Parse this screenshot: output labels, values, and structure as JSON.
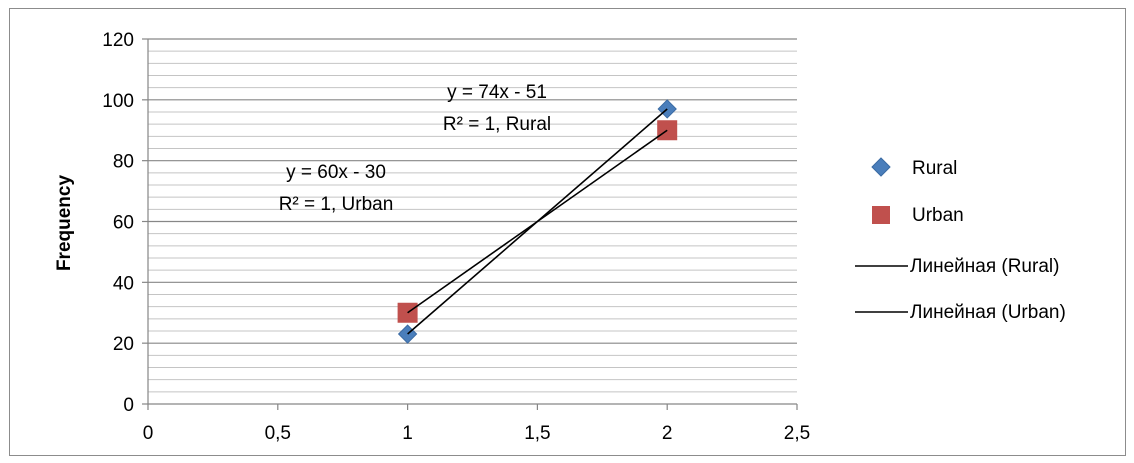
{
  "chart_data": {
    "type": "scatter",
    "title": "",
    "xlabel": "",
    "ylabel": "Frequency",
    "xlim": [
      0,
      2.5
    ],
    "ylim": [
      0,
      120
    ],
    "x_ticks": [
      0,
      0.5,
      1,
      1.5,
      2,
      2.5
    ],
    "x_tick_labels": [
      "0",
      "0,5",
      "1",
      "1,5",
      "2",
      "2,5"
    ],
    "y_ticks": [
      0,
      20,
      40,
      60,
      80,
      100,
      120
    ],
    "y_tick_labels": [
      "0",
      "20",
      "40",
      "60",
      "80",
      "100",
      "120"
    ],
    "grid": {
      "major_y": 20,
      "minor_y": 4,
      "vertical": false
    },
    "legend_position": "right",
    "series": [
      {
        "name": "Rural",
        "marker": "diamond",
        "color": "#4a7ebb",
        "points": [
          {
            "x": 1,
            "y": 23
          },
          {
            "x": 2,
            "y": 97
          }
        ]
      },
      {
        "name": "Urban",
        "marker": "square",
        "color": "#c0504d",
        "points": [
          {
            "x": 1,
            "y": 30
          },
          {
            "x": 2,
            "y": 90
          }
        ]
      }
    ],
    "trendlines": [
      {
        "name": "Линейная (Rural)",
        "color": "#000000",
        "slope": 74,
        "intercept": -51,
        "x_range": [
          1,
          2
        ],
        "equation": "y = 74x - 51",
        "r2": "R² = 1, Rural"
      },
      {
        "name": "Линейная (Urban)",
        "color": "#000000",
        "slope": 60,
        "intercept": -30,
        "x_range": [
          1,
          2
        ],
        "equation": "y = 60x - 30",
        "r2": "R² = 1, Urban"
      }
    ]
  }
}
